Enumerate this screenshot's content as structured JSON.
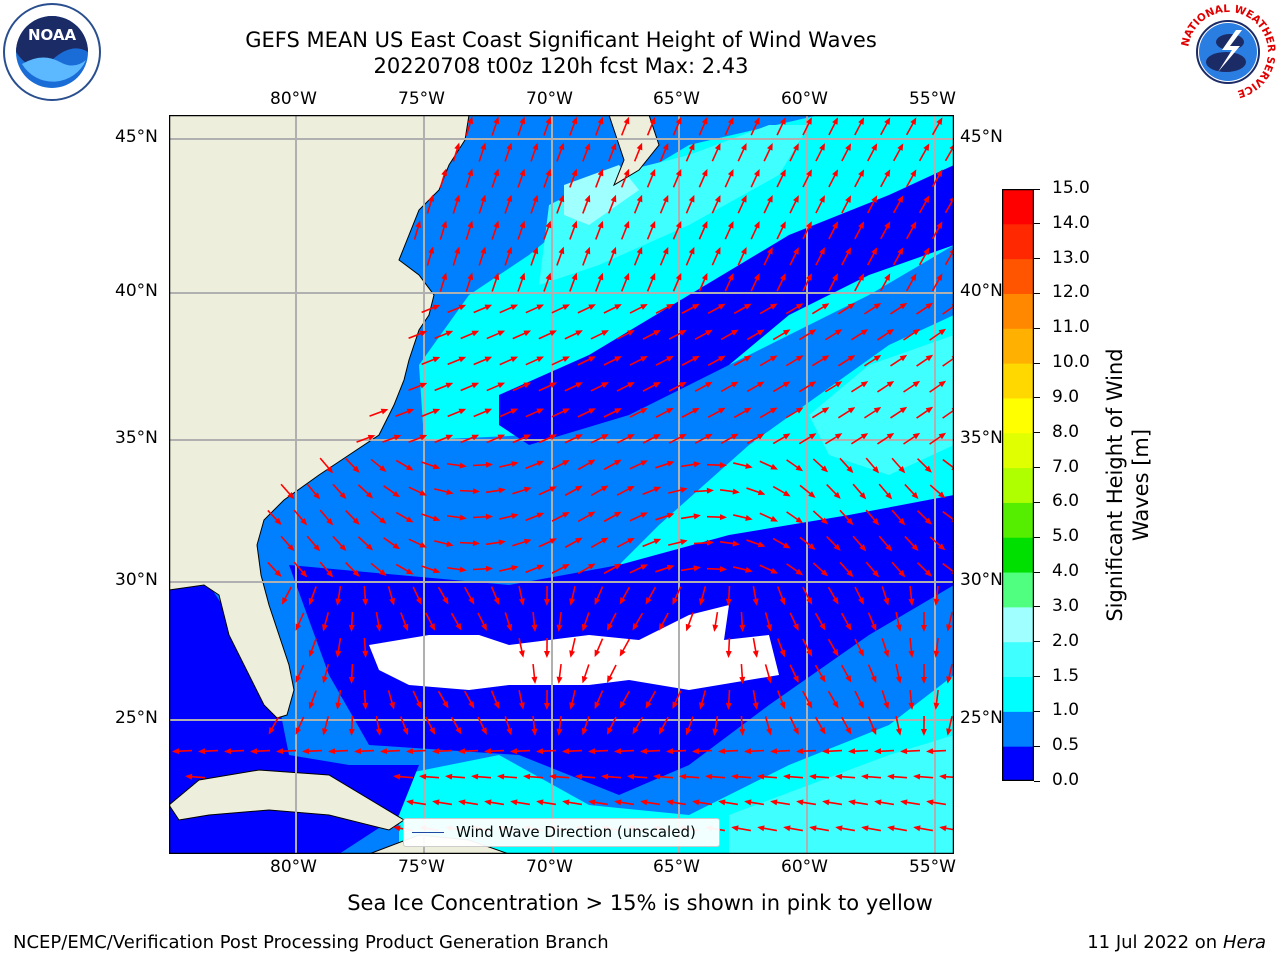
{
  "title": {
    "line1": "GEFS MEAN US East Coast Significant Height of Wind Waves",
    "line2": "20220708 t00z 120h fcst   Max: 2.43"
  },
  "logos": {
    "left": {
      "name": "noaa-logo",
      "text": "NOAA"
    },
    "right": {
      "name": "national-weather-service-logo",
      "text": "NATIONAL WEATHER SERVICE"
    }
  },
  "map": {
    "lon_labels": [
      "80°W",
      "75°W",
      "70°W",
      "65°W",
      "60°W",
      "55°W"
    ],
    "lat_labels": [
      "45°N",
      "40°N",
      "35°N",
      "30°N",
      "25°N"
    ],
    "extent": {
      "lon": [
        -85,
        -54.3
      ],
      "lat": [
        20.3,
        45.8
      ]
    },
    "legend_label": "Wind Wave Direction (unscaled)",
    "arrow_color": "#ff0000",
    "land_color": "#eeeedc",
    "gridline_color": "#b0b0b0"
  },
  "colorbar": {
    "label": "Significant Height of Wind Waves [m]",
    "ticks": [
      "0.0",
      "0.5",
      "1.0",
      "1.5",
      "2.0",
      "3.0",
      "4.0",
      "5.0",
      "6.0",
      "7.0",
      "8.0",
      "9.0",
      "10.0",
      "11.0",
      "12.0",
      "13.0",
      "14.0",
      "15.0"
    ],
    "colors": [
      "#0000ff",
      "#0080ff",
      "#00ffff",
      "#40ffff",
      "#a0ffff",
      "#50ff80",
      "#00e000",
      "#55ee00",
      "#b0ff00",
      "#e0ff00",
      "#ffff00",
      "#ffd800",
      "#ffb000",
      "#ff8800",
      "#ff5500",
      "#ff2800",
      "#ff0000"
    ]
  },
  "caption": "Sea Ice Concentration > 15% is shown in pink to yellow",
  "footer": {
    "left": "NCEP/EMC/Verification Post Processing Product Generation Branch",
    "date": "11 Jul 2022 on ",
    "machine": "Hera"
  }
}
